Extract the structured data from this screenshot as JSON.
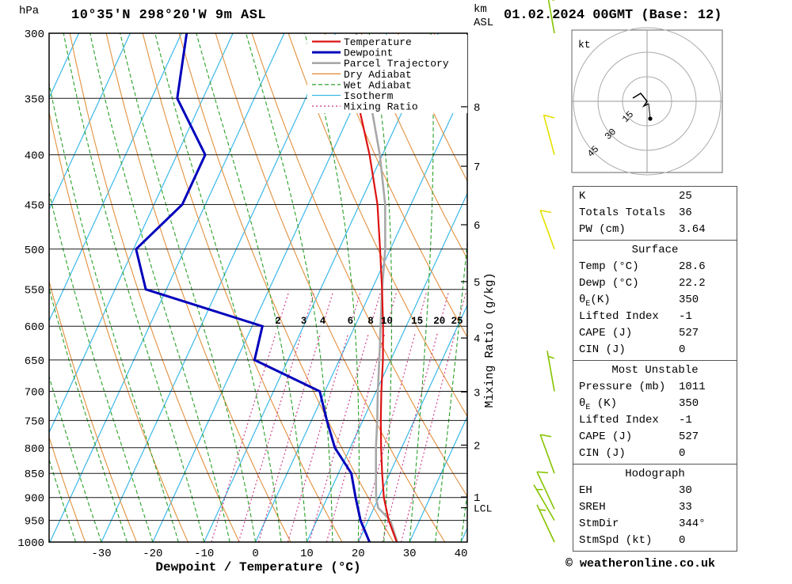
{
  "header": {
    "pressure_unit": "hPa",
    "station_title": "10°35'N 298°20'W 9m ASL",
    "datetime_title": "01.02.2024 00GMT (Base: 12)",
    "km_unit_top": "km",
    "km_unit_bottom": "ASL"
  },
  "axes": {
    "pressure_ticks": [
      300,
      350,
      400,
      450,
      500,
      550,
      600,
      650,
      700,
      750,
      800,
      850,
      900,
      950,
      1000
    ],
    "temp_ticks": [
      -30,
      -20,
      -10,
      0,
      10,
      20,
      30,
      40
    ],
    "x_axis_label": "Dewpoint / Temperature (°C)",
    "mixing_axis_label": "Mixing Ratio (g/kg)",
    "lcl_label": "LCL",
    "km_levels": [
      {
        "km": 1,
        "p": 899
      },
      {
        "km": 2,
        "p": 795
      },
      {
        "km": 3,
        "p": 701
      },
      {
        "km": 4,
        "p": 617
      },
      {
        "km": 5,
        "p": 540
      },
      {
        "km": 6,
        "p": 472
      },
      {
        "km": 7,
        "p": 411
      },
      {
        "km": 8,
        "p": 357
      }
    ]
  },
  "legend": [
    {
      "label": "Temperature",
      "color": "#dd1111",
      "dash": "",
      "width": 2.2
    },
    {
      "label": "Dewpoint",
      "color": "#0000bb",
      "dash": "",
      "width": 3
    },
    {
      "label": "Parcel Trajectory",
      "color": "#a8a8a8",
      "dash": "",
      "width": 2.6
    },
    {
      "label": "Dry Adiabat",
      "color": "#e2903e",
      "dash": "",
      "width": 1.3
    },
    {
      "label": "Wet Adiabat",
      "color": "#28a028",
      "dash": "5,3",
      "width": 1.3
    },
    {
      "label": "Isotherm",
      "color": "#3bb8e8",
      "dash": "",
      "width": 1.3
    },
    {
      "label": "Mixing Ratio",
      "color": "#cc3380",
      "dash": "2,3",
      "width": 1.3
    }
  ],
  "chart_data": {
    "type": "line",
    "diagram": "skew-t log-p sounding",
    "pressure_range_hpa": [
      300,
      1000
    ],
    "temperature_axis_c": [
      -40,
      40
    ],
    "isotherm_step_c": 10,
    "dry_adiabat_theta_k": {
      "min": 240,
      "max": 450,
      "step": 10
    },
    "wet_adiabat_start_c": {
      "min": -40,
      "max": 40,
      "step": 5
    },
    "mixing_ratio_lines_gkg": [
      2,
      3,
      4,
      6,
      8,
      10,
      15,
      20,
      25
    ],
    "lcl_pressure_hpa": 922,
    "temperature_profile": [
      [
        1000,
        27.5
      ],
      [
        950,
        24
      ],
      [
        900,
        21
      ],
      [
        850,
        18.5
      ],
      [
        800,
        16
      ],
      [
        750,
        13.5
      ],
      [
        700,
        11
      ],
      [
        650,
        8.5
      ],
      [
        600,
        5.5
      ],
      [
        550,
        2
      ],
      [
        500,
        -2
      ],
      [
        450,
        -6.5
      ],
      [
        400,
        -12.5
      ],
      [
        350,
        -20
      ],
      [
        330,
        -23.5
      ]
    ],
    "dewpoint_profile": [
      [
        1000,
        22.2
      ],
      [
        950,
        18.5
      ],
      [
        900,
        15.5
      ],
      [
        850,
        12.5
      ],
      [
        800,
        7
      ],
      [
        750,
        3
      ],
      [
        700,
        -1
      ],
      [
        650,
        -16.5
      ],
      [
        600,
        -18
      ],
      [
        550,
        -44
      ],
      [
        500,
        -49.5
      ],
      [
        450,
        -44.5
      ],
      [
        400,
        -44.5
      ],
      [
        350,
        -55
      ],
      [
        300,
        -59
      ]
    ],
    "parcel_profile": [
      [
        1000,
        27.6
      ],
      [
        950,
        24.3
      ],
      [
        922,
        20.8
      ],
      [
        900,
        19.5
      ],
      [
        850,
        17.3
      ],
      [
        800,
        15
      ],
      [
        750,
        12.8
      ],
      [
        700,
        10.3
      ],
      [
        650,
        7.8
      ],
      [
        600,
        5
      ],
      [
        550,
        2
      ],
      [
        500,
        -1
      ],
      [
        450,
        -5
      ],
      [
        400,
        -10.5
      ],
      [
        350,
        -17.5
      ],
      [
        300,
        -26
      ]
    ],
    "wind_barbs": [
      [
        300,
        350,
        15,
        "green"
      ],
      [
        400,
        345,
        10,
        "yellow"
      ],
      [
        500,
        340,
        10,
        "yellow"
      ],
      [
        700,
        350,
        5,
        "green"
      ],
      [
        850,
        340,
        10,
        "green"
      ],
      [
        925,
        335,
        10,
        "green"
      ],
      [
        950,
        330,
        5,
        "green"
      ],
      [
        1000,
        335,
        5,
        "green"
      ]
    ]
  },
  "hodograph": {
    "unit_label": "kt",
    "ring_step_kt": 15,
    "ring_labels": [
      "15",
      "30",
      "45"
    ],
    "trace": [
      [
        -18,
        -4
      ],
      [
        -8,
        -10
      ],
      [
        0,
        0
      ],
      [
        -4,
        6
      ],
      [
        2,
        3
      ]
    ],
    "dot": [
      4,
      22
    ]
  },
  "stats": {
    "sections": [
      {
        "rows": [
          {
            "label": "K",
            "value": "25"
          },
          {
            "label": "Totals Totals",
            "value": "36"
          },
          {
            "label": "PW (cm)",
            "value": "3.64"
          }
        ]
      },
      {
        "title": "Surface",
        "rows": [
          {
            "label": "Temp (°C)",
            "value": "28.6"
          },
          {
            "label": "Dewp (°C)",
            "value": "22.2"
          },
          {
            "label": "θ_E(K)",
            "value": "350"
          },
          {
            "label": "Lifted Index",
            "value": "-1"
          },
          {
            "label": "CAPE (J)",
            "value": "527"
          },
          {
            "label": "CIN (J)",
            "value": "0"
          }
        ]
      },
      {
        "title": "Most Unstable",
        "rows": [
          {
            "label": "Pressure (mb)",
            "value": "1011"
          },
          {
            "label": "θ_E (K)",
            "value": "350"
          },
          {
            "label": "Lifted Index",
            "value": "-1"
          },
          {
            "label": "CAPE (J)",
            "value": "527"
          },
          {
            "label": "CIN (J)",
            "value": "0"
          }
        ]
      },
      {
        "title": "Hodograph",
        "rows": [
          {
            "label": "EH",
            "value": "30"
          },
          {
            "label": "SREH",
            "value": "33"
          },
          {
            "label": "StmDir",
            "value": "344°"
          },
          {
            "label": "StmSpd (kt)",
            "value": "0"
          }
        ]
      }
    ]
  },
  "palette": {
    "temperature": "#dd1111",
    "dewpoint": "#0000bb",
    "parcel": "#a8a8a8",
    "dry_adiabat": "#e2903e",
    "wet_adiabat": "#28a028",
    "isotherm": "#3bb8e8",
    "mixing_ratio": "#cc3380",
    "grid": "#1a1a1a",
    "frame": "#000000",
    "barb_green": "#86c400",
    "barb_yellow": "#e6e000",
    "hodograph_grid": "#999999"
  },
  "footer": {
    "copyright": "© weatheronline.co.uk"
  }
}
